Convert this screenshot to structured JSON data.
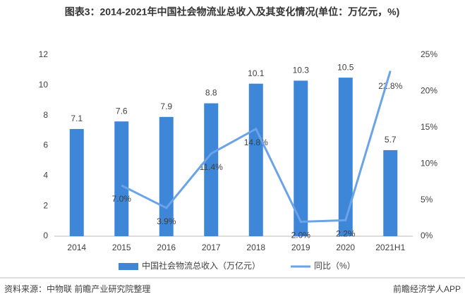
{
  "chart_data": {
    "type": "bar-line",
    "title": "图表3：2014-2021年中国社会物流业总收入及其变化情况(单位：万亿元，%)",
    "categories": [
      "2014",
      "2015",
      "2016",
      "2017",
      "2018",
      "2019",
      "2020",
      "2021H1"
    ],
    "series": [
      {
        "name": "中国社会物流总收入（万亿元）",
        "color": "#3d86d8",
        "type": "bar",
        "values": [
          7.1,
          7.6,
          7.9,
          8.8,
          10.1,
          10.3,
          10.5,
          5.7
        ]
      },
      {
        "name": "同比（%）",
        "color": "#6aa3e8",
        "type": "line",
        "axis": "y2",
        "values": [
          null,
          7.0,
          3.9,
          11.4,
          14.8,
          2.0,
          2.2,
          22.8
        ],
        "value_labels": [
          null,
          "7.0%",
          "3.9%",
          "11.4%",
          "14.8%",
          "2.0%",
          "2.2%",
          "22.8%"
        ]
      }
    ],
    "ylim": [
      0,
      12
    ],
    "yticks": [
      0,
      2,
      4,
      6,
      8,
      10,
      12
    ],
    "y2lim": [
      0,
      25
    ],
    "y2ticks": [
      {
        "value": 0,
        "label": "0%"
      },
      {
        "value": 5,
        "label": "5%"
      },
      {
        "value": 10,
        "label": "10%"
      },
      {
        "value": 15,
        "label": "15%"
      },
      {
        "value": 20,
        "label": "20%"
      },
      {
        "value": 25,
        "label": "25%"
      }
    ],
    "source": "资料来源：中物联 前瞻产业研究院整理",
    "footer": "前瞻经济学人APP"
  }
}
